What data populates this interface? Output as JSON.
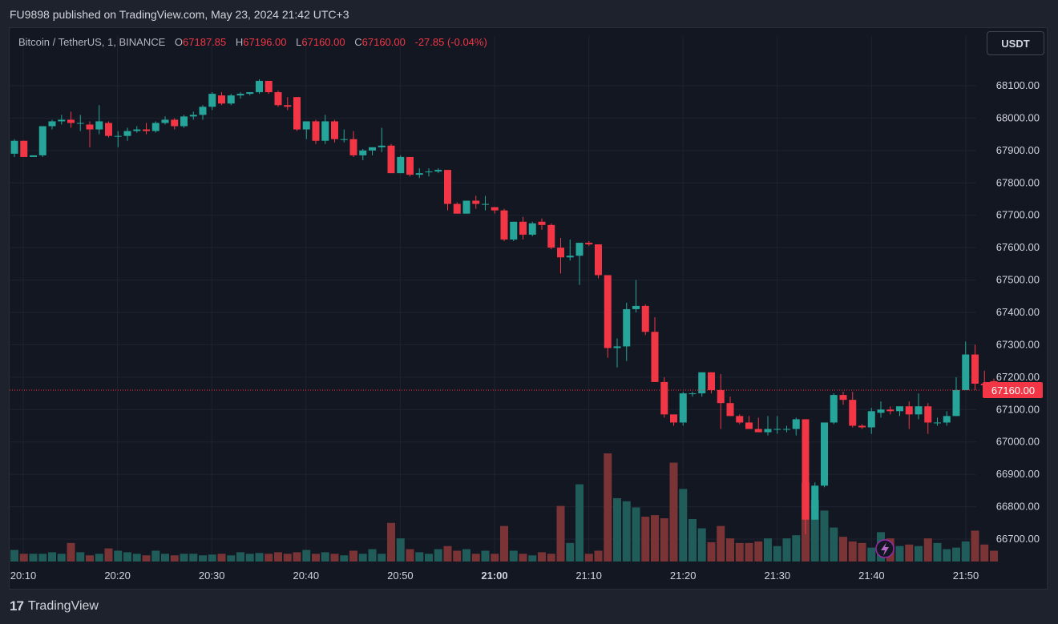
{
  "header": {
    "text": "FU9898 published on TradingView.com, May 23, 2024 21:42 UTC+3"
  },
  "legend": {
    "symbol": "Bitcoin / TetherUS, 1, BINANCE",
    "o_label": "O",
    "o_value": "67187.85",
    "h_label": "H",
    "h_value": "67196.00",
    "l_label": "L",
    "l_value": "67160.00",
    "c_label": "C",
    "c_value": "67160.00",
    "change": "-27.85 (-0.04%)"
  },
  "currency": "USDT",
  "brand": {
    "name": "TradingView",
    "logo": "17"
  },
  "colors": {
    "up": "#26a69a",
    "down": "#f23645",
    "grid": "#1f2330",
    "text": "#d1d4dc",
    "vol_up": "#1f5c5a",
    "vol_down": "#7a3436"
  },
  "chart_data": {
    "type": "candlestick",
    "ylim": [
      66640,
      68200
    ],
    "y_ticks": [
      "68100.00",
      "68000.00",
      "67900.00",
      "67800.00",
      "67700.00",
      "67600.00",
      "67500.00",
      "67400.00",
      "67300.00",
      "67200.00",
      "67100.00",
      "67000.00",
      "66900.00",
      "66800.00",
      "66700.00"
    ],
    "x_ticks": [
      "20:10",
      "20:20",
      "20:30",
      "20:40",
      "20:50",
      "21:00",
      "21:10",
      "21:20",
      "21:30",
      "21:40",
      "21:50"
    ],
    "last_price": "67160.00",
    "candles": [
      [
        67890,
        67935,
        67880,
        67930
      ],
      [
        67930,
        67930,
        67880,
        67880
      ],
      [
        67880,
        67880,
        67880,
        67885
      ],
      [
        67885,
        67975,
        67880,
        67975
      ],
      [
        67975,
        67995,
        67965,
        67990
      ],
      [
        67990,
        68010,
        67980,
        67995
      ],
      [
        67995,
        68020,
        67970,
        67985
      ],
      [
        67985,
        68010,
        67960,
        67985
      ],
      [
        67980,
        67990,
        67910,
        67965
      ],
      [
        67965,
        68040,
        67950,
        67990
      ],
      [
        67985,
        67990,
        67940,
        67945
      ],
      [
        67945,
        67960,
        67910,
        67945
      ],
      [
        67945,
        67970,
        67930,
        67960
      ],
      [
        67960,
        67975,
        67955,
        67965
      ],
      [
        67965,
        67985,
        67950,
        67960
      ],
      [
        67960,
        67990,
        67955,
        67985
      ],
      [
        67985,
        68005,
        67980,
        67995
      ],
      [
        67995,
        68000,
        67965,
        67975
      ],
      [
        67975,
        68010,
        67970,
        68005
      ],
      [
        68005,
        68020,
        67995,
        68010
      ],
      [
        68010,
        68040,
        67995,
        68035
      ],
      [
        68035,
        68080,
        68025,
        68075
      ],
      [
        68070,
        68080,
        68040,
        68045
      ],
      [
        68045,
        68075,
        68040,
        68070
      ],
      [
        68070,
        68080,
        68060,
        68075
      ],
      [
        68075,
        68080,
        68070,
        68080
      ],
      [
        68080,
        68120,
        68075,
        68115
      ],
      [
        68115,
        68115,
        68075,
        68080
      ],
      [
        68080,
        68085,
        68035,
        68040
      ],
      [
        68040,
        68065,
        68025,
        68035
      ],
      [
        68065,
        68065,
        67960,
        67965
      ],
      [
        67965,
        67990,
        67935,
        67990
      ],
      [
        67990,
        67995,
        67920,
        67930
      ],
      [
        67930,
        68010,
        67920,
        67990
      ],
      [
        67990,
        67995,
        67925,
        67935
      ],
      [
        67935,
        67965,
        67925,
        67935
      ],
      [
        67935,
        67960,
        67880,
        67885
      ],
      [
        67885,
        67905,
        67870,
        67900
      ],
      [
        67900,
        67910,
        67885,
        67910
      ],
      [
        67910,
        67970,
        67895,
        67915
      ],
      [
        67915,
        67920,
        67830,
        67830
      ],
      [
        67830,
        67885,
        67830,
        67880
      ],
      [
        67880,
        67880,
        67820,
        67825
      ],
      [
        67825,
        67845,
        67815,
        67830
      ],
      [
        67835,
        67845,
        67820,
        67835
      ],
      [
        67835,
        67845,
        67830,
        67840
      ],
      [
        67840,
        67840,
        67715,
        67735
      ],
      [
        67735,
        67740,
        67705,
        67705
      ],
      [
        67705,
        67745,
        67705,
        67745
      ],
      [
        67745,
        67760,
        67720,
        67735
      ],
      [
        67735,
        67760,
        67715,
        67735
      ],
      [
        67725,
        67725,
        67705,
        67715
      ],
      [
        67715,
        67720,
        67620,
        67625
      ],
      [
        67625,
        67680,
        67620,
        67680
      ],
      [
        67680,
        67695,
        67625,
        67640
      ],
      [
        67640,
        67680,
        67635,
        67675
      ],
      [
        67680,
        67690,
        67655,
        67670
      ],
      [
        67670,
        67675,
        67595,
        67600
      ],
      [
        67600,
        67630,
        67520,
        67570
      ],
      [
        67570,
        67625,
        67560,
        67575
      ],
      [
        67575,
        67615,
        67485,
        67615
      ],
      [
        67615,
        67620,
        67605,
        67610
      ],
      [
        67610,
        67610,
        67505,
        67515
      ],
      [
        67515,
        67515,
        67260,
        67290
      ],
      [
        67290,
        67320,
        67230,
        67295
      ],
      [
        67295,
        67430,
        67250,
        67410
      ],
      [
        67410,
        67500,
        67400,
        67420
      ],
      [
        67420,
        67425,
        67330,
        67340
      ],
      [
        67340,
        67385,
        67185,
        67185
      ],
      [
        67185,
        67200,
        67075,
        67085
      ],
      [
        67085,
        67085,
        67050,
        67060
      ],
      [
        67060,
        67155,
        67050,
        67150
      ],
      [
        67150,
        67155,
        67140,
        67150
      ],
      [
        67150,
        67215,
        67140,
        67215
      ],
      [
        67215,
        67215,
        67150,
        67160
      ],
      [
        67160,
        67210,
        67040,
        67120
      ],
      [
        67120,
        67140,
        67080,
        67080
      ],
      [
        67080,
        67085,
        67055,
        67060
      ],
      [
        67060,
        67080,
        67040,
        67040
      ],
      [
        67040,
        67075,
        67030,
        67030
      ],
      [
        67030,
        67080,
        67020,
        67040
      ],
      [
        67040,
        67080,
        67025,
        67040
      ],
      [
        67040,
        67050,
        67030,
        67040
      ],
      [
        67040,
        67075,
        67020,
        67070
      ],
      [
        67070,
        67070,
        66715,
        66760
      ],
      [
        66760,
        66875,
        66760,
        66865
      ],
      [
        66865,
        67060,
        66860,
        67060
      ],
      [
        67060,
        67150,
        67055,
        67145
      ],
      [
        67145,
        67155,
        67115,
        67130
      ],
      [
        67130,
        67155,
        67045,
        67050
      ],
      [
        67050,
        67055,
        67040,
        67045
      ],
      [
        67045,
        67105,
        67025,
        67095
      ],
      [
        67090,
        67125,
        67075,
        67100
      ],
      [
        67100,
        67110,
        67085,
        67095
      ],
      [
        67095,
        67110,
        67080,
        67110
      ],
      [
        67110,
        67125,
        67040,
        67085
      ],
      [
        67085,
        67150,
        67070,
        67110
      ],
      [
        67110,
        67120,
        67025,
        67060
      ],
      [
        67060,
        67075,
        67050,
        67060
      ],
      [
        67060,
        67095,
        67050,
        67080
      ],
      [
        67080,
        67200,
        67080,
        67160
      ],
      [
        67160,
        67310,
        67160,
        67270
      ],
      [
        67270,
        67300,
        67160,
        67180
      ],
      [
        67180,
        67220,
        67170,
        67175
      ],
      [
        67187.85,
        67196,
        67160,
        67160
      ]
    ],
    "volumes": [
      15,
      10,
      10,
      10,
      12,
      10,
      24,
      12,
      8,
      10,
      17,
      14,
      12,
      10,
      8,
      14,
      10,
      8,
      10,
      10,
      8,
      9,
      10,
      8,
      12,
      10,
      11,
      10,
      12,
      10,
      12,
      15,
      10,
      12,
      10,
      8,
      14,
      10,
      16,
      10,
      50,
      30,
      16,
      12,
      10,
      16,
      20,
      14,
      16,
      10,
      14,
      10,
      46,
      14,
      10,
      8,
      12,
      10,
      72,
      24,
      100,
      10,
      14,
      140,
      82,
      78,
      70,
      58,
      60,
      56,
      128,
      94,
      55,
      43,
      25,
      46,
      30,
      24,
      24,
      26,
      30,
      20,
      30,
      34,
      102,
      80,
      66,
      44,
      32,
      26,
      24,
      18,
      38,
      30,
      20,
      22,
      20,
      30,
      24,
      16,
      18,
      26,
      40,
      22,
      14
    ]
  }
}
